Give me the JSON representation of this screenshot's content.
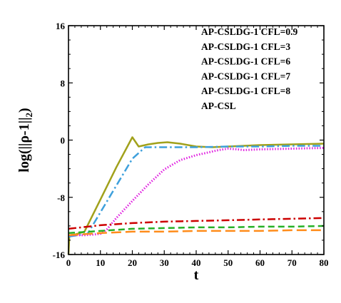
{
  "chart_data": {
    "type": "line",
    "title": "",
    "xlabel": "t",
    "ylabel": "log(||ρ-1||",
    "ylabel_subscript": "2",
    "ylabel_close": ")",
    "xlim": [
      0,
      80
    ],
    "ylim": [
      -16,
      16
    ],
    "x_ticks": [
      0,
      10,
      20,
      30,
      40,
      50,
      60,
      70,
      80
    ],
    "y_ticks": [
      -16,
      -8,
      0,
      8,
      16
    ],
    "grid": false,
    "legend_position": "top-right",
    "series": [
      {
        "name": "AP-CSLDG-1 CFL=0.9",
        "color": "#a1a11b",
        "dash": "solid",
        "x": [
          0,
          0.3,
          2,
          5,
          10,
          15,
          20,
          22,
          25,
          28,
          31,
          35,
          40,
          45,
          50,
          55,
          60,
          70,
          80
        ],
        "y": [
          -16,
          -13.3,
          -13.2,
          -12.8,
          -8.3,
          -3.8,
          0.4,
          -0.9,
          -0.6,
          -0.4,
          -0.3,
          -0.5,
          -0.9,
          -1.0,
          -0.9,
          -0.8,
          -0.7,
          -0.6,
          -0.5
        ]
      },
      {
        "name": "AP-CSLDG-1 CFL=3",
        "color": "#3ea0dc",
        "dash": "dashdot",
        "x": [
          0,
          3,
          6,
          8,
          12,
          16,
          20,
          24,
          27,
          30,
          40,
          50,
          60,
          70,
          80
        ],
        "y": [
          -13.5,
          -13.3,
          -13.1,
          -11.6,
          -8.6,
          -5.6,
          -2.6,
          -1.0,
          -1.0,
          -1.0,
          -1.0,
          -0.9,
          -0.9,
          -0.8,
          -0.8
        ]
      },
      {
        "name": "AP-CSLDG-1 CFL=6",
        "color": "#e020e0",
        "dash": "dotted",
        "x": [
          0,
          5,
          8,
          10,
          12,
          15,
          20,
          25,
          30,
          35,
          40,
          42,
          44,
          47,
          50,
          53,
          55,
          60,
          70,
          80
        ],
        "y": [
          -13.3,
          -13.3,
          -13.2,
          -13.1,
          -12.5,
          -10.9,
          -8.5,
          -6.2,
          -4.1,
          -2.8,
          -2.1,
          -1.9,
          -1.7,
          -1.4,
          -1.2,
          -1.3,
          -1.4,
          -1.3,
          -1.2,
          -1.1
        ]
      },
      {
        "name": "AP-CSLDG-1 CFL=7",
        "color": "#cc0000",
        "dash": "dashdot",
        "x": [
          0,
          10,
          20,
          30,
          40,
          50,
          60,
          70,
          80
        ],
        "y": [
          -12.4,
          -11.9,
          -11.6,
          -11.4,
          -11.3,
          -11.2,
          -11.1,
          -11.0,
          -10.9
        ]
      },
      {
        "name": "AP-CSLDG-1 CFL=8",
        "color": "#26b026",
        "dash": "dashed",
        "x": [
          0,
          10,
          20,
          30,
          40,
          50,
          60,
          70,
          80
        ],
        "y": [
          -13.0,
          -12.7,
          -12.4,
          -12.3,
          -12.2,
          -12.2,
          -12.1,
          -12.1,
          -12.0
        ]
      },
      {
        "name": "AP-CSL",
        "color": "#ff8c1a",
        "dash": "longdash",
        "x": [
          0,
          10,
          20,
          30,
          40,
          50,
          60,
          70,
          80
        ],
        "y": [
          -13.3,
          -13.0,
          -12.8,
          -12.8,
          -12.7,
          -12.7,
          -12.7,
          -12.6,
          -12.6
        ]
      }
    ]
  }
}
